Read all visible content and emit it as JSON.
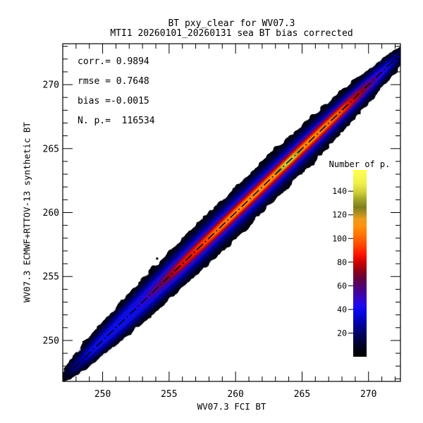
{
  "title": {
    "line1": "BT pxy_clear for WV07.3",
    "line2": "MTI1 20260101_20260131 sea BT bias corrected"
  },
  "stats": {
    "corr": "corr.= 0.9894",
    "rmse": "rmse = 0.7648",
    "bias": "bias =-0.0015",
    "npoints": "N. p.=  116534"
  },
  "axes": {
    "x": {
      "title": "WV07.3 FCI BT"
    },
    "y": {
      "title": "WV07.3 ECMWF+RTTOV-13 synthetic BT"
    }
  },
  "colorbar_title": "Number of p.",
  "chart_data": {
    "type": "heatmap",
    "title": "BT pxy_clear for WV07.3",
    "subtitle": "MTI1 20260101_20260131 sea BT bias corrected",
    "xlabel": "WV07.3 FCI BT",
    "ylabel": "WV07.3 ECMWF+RTTOV-13 synthetic BT",
    "xlim": [
      247.0,
      272.4
    ],
    "ylim": [
      246.8,
      273.2
    ],
    "xticks": [
      250,
      255,
      260,
      265,
      270
    ],
    "yticks": [
      250,
      255,
      260,
      265,
      270
    ],
    "minor_tick_step": 1,
    "grid": false,
    "stats": {
      "corr": 0.9894,
      "rmse": 0.7648,
      "bias": -0.0015,
      "n_points": 116534
    },
    "identity_line": {
      "style": "dash-dot",
      "color": "#000000"
    },
    "peak": {
      "bt": 264.0,
      "value": 158
    },
    "outlier_point": {
      "x": 254.1,
      "y": 256.4
    },
    "colorbar": {
      "label": "Number of p.",
      "ticks": [
        20,
        40,
        60,
        80,
        100,
        120,
        140
      ],
      "vmin": 0,
      "vmax": 158,
      "stops": [
        {
          "offset": 0.0,
          "color": "#000000"
        },
        {
          "offset": 0.05,
          "color": "#00001e"
        },
        {
          "offset": 0.12,
          "color": "#000060"
        },
        {
          "offset": 0.18,
          "color": "#0000a8"
        },
        {
          "offset": 0.24,
          "color": "#0806e8"
        },
        {
          "offset": 0.27,
          "color": "#1a0af0"
        },
        {
          "offset": 0.31,
          "color": "#3304cc"
        },
        {
          "offset": 0.35,
          "color": "#470392"
        },
        {
          "offset": 0.39,
          "color": "#560260"
        },
        {
          "offset": 0.43,
          "color": "#6e0134"
        },
        {
          "offset": 0.47,
          "color": "#9c0010"
        },
        {
          "offset": 0.51,
          "color": "#d40000"
        },
        {
          "offset": 0.55,
          "color": "#ff1600"
        },
        {
          "offset": 0.6,
          "color": "#ff4800"
        },
        {
          "offset": 0.65,
          "color": "#ff7200"
        },
        {
          "offset": 0.7,
          "color": "#ff9210"
        },
        {
          "offset": 0.74,
          "color": "#e89a1c"
        },
        {
          "offset": 0.77,
          "color": "#ad8d1f"
        },
        {
          "offset": 0.8,
          "color": "#7f7f1c"
        },
        {
          "offset": 0.84,
          "color": "#a2a226"
        },
        {
          "offset": 0.88,
          "color": "#cfcf38"
        },
        {
          "offset": 0.93,
          "color": "#f0f04a"
        },
        {
          "offset": 1.0,
          "color": "#ffff55"
        }
      ]
    },
    "density_layers": [
      {
        "bt": 260.0,
        "half_len": 13.2,
        "half_width": 2.06,
        "color": "#050507"
      },
      {
        "bt": 260.0,
        "half_len": 12.9,
        "half_width": 1.64,
        "color": "#000042"
      },
      {
        "bt": 260.0,
        "half_len": 12.4,
        "half_width": 1.26,
        "color": "#000294"
      },
      {
        "bt": 260.2,
        "half_len": 11.7,
        "half_width": 0.92,
        "color": "#0d08e8"
      },
      {
        "bt": 261.9,
        "half_len": 9.4,
        "half_width": 0.7,
        "color": "#3c02c2"
      },
      {
        "bt": 262.0,
        "half_len": 8.6,
        "half_width": 0.58,
        "color": "#6e0150"
      },
      {
        "bt": 262.25,
        "half_len": 7.8,
        "half_width": 0.49,
        "color": "#a3000a"
      },
      {
        "bt": 262.25,
        "half_len": 7.25,
        "half_width": 0.4,
        "color": "#e00000"
      },
      {
        "bt": 262.25,
        "half_len": 6.75,
        "half_width": 0.32,
        "color": "#ff2d00"
      },
      {
        "bt": 262.75,
        "half_len": 5.75,
        "half_width": 0.245,
        "color": "#ff8200"
      },
      {
        "bt": 263.0,
        "half_len": 5.0,
        "half_width": 0.18,
        "color": "#ffa81e"
      },
      {
        "bt": 264.0,
        "half_len": 1.0,
        "half_width": 0.2,
        "color": "#8f8f1e",
        "hotspot": true
      },
      {
        "bt": 264.0,
        "half_len": 0.62,
        "half_width": 0.145,
        "color": "#ebeb4d",
        "hotspot": true
      }
    ]
  }
}
